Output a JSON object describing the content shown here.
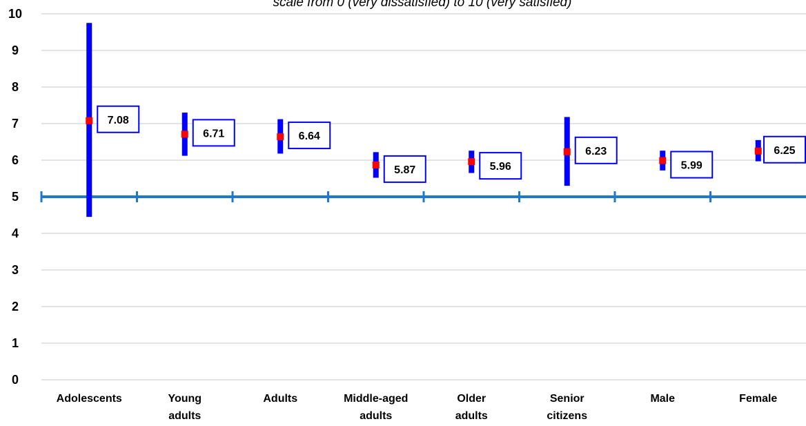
{
  "chart_data": {
    "type": "errorbar",
    "subtitle": "scale from 0 (very dissatisfied) to 10 (very satisfied)",
    "categories": [
      [
        "Adolescents"
      ],
      [
        "Young",
        "adults"
      ],
      [
        "Adults"
      ],
      [
        "Middle-aged",
        "adults"
      ],
      [
        "Older",
        "adults"
      ],
      [
        "Senior",
        "citizens"
      ],
      [
        "Male"
      ],
      [
        "Female"
      ]
    ],
    "means": [
      7.08,
      6.71,
      6.64,
      5.87,
      5.96,
      6.23,
      5.99,
      6.25
    ],
    "labels": [
      "7.08",
      "6.71",
      "6.64",
      "5.87",
      "5.96",
      "6.23",
      "5.99",
      "6.25"
    ],
    "lower": [
      4.45,
      6.12,
      6.18,
      5.52,
      5.65,
      5.3,
      5.72,
      5.97
    ],
    "upper": [
      9.75,
      7.3,
      7.12,
      6.22,
      6.26,
      7.18,
      6.26,
      6.55
    ],
    "ylim": [
      0,
      10
    ],
    "yticks": [
      0,
      1,
      2,
      3,
      4,
      5,
      6,
      7,
      8,
      9,
      10
    ],
    "reference_line": 5,
    "grid": true,
    "colors": {
      "bar": "#0000ff",
      "mean": "#ff0000",
      "reference": "#1f78d0",
      "grid": "#c8c8c8",
      "label_border": "#0000ff"
    }
  }
}
